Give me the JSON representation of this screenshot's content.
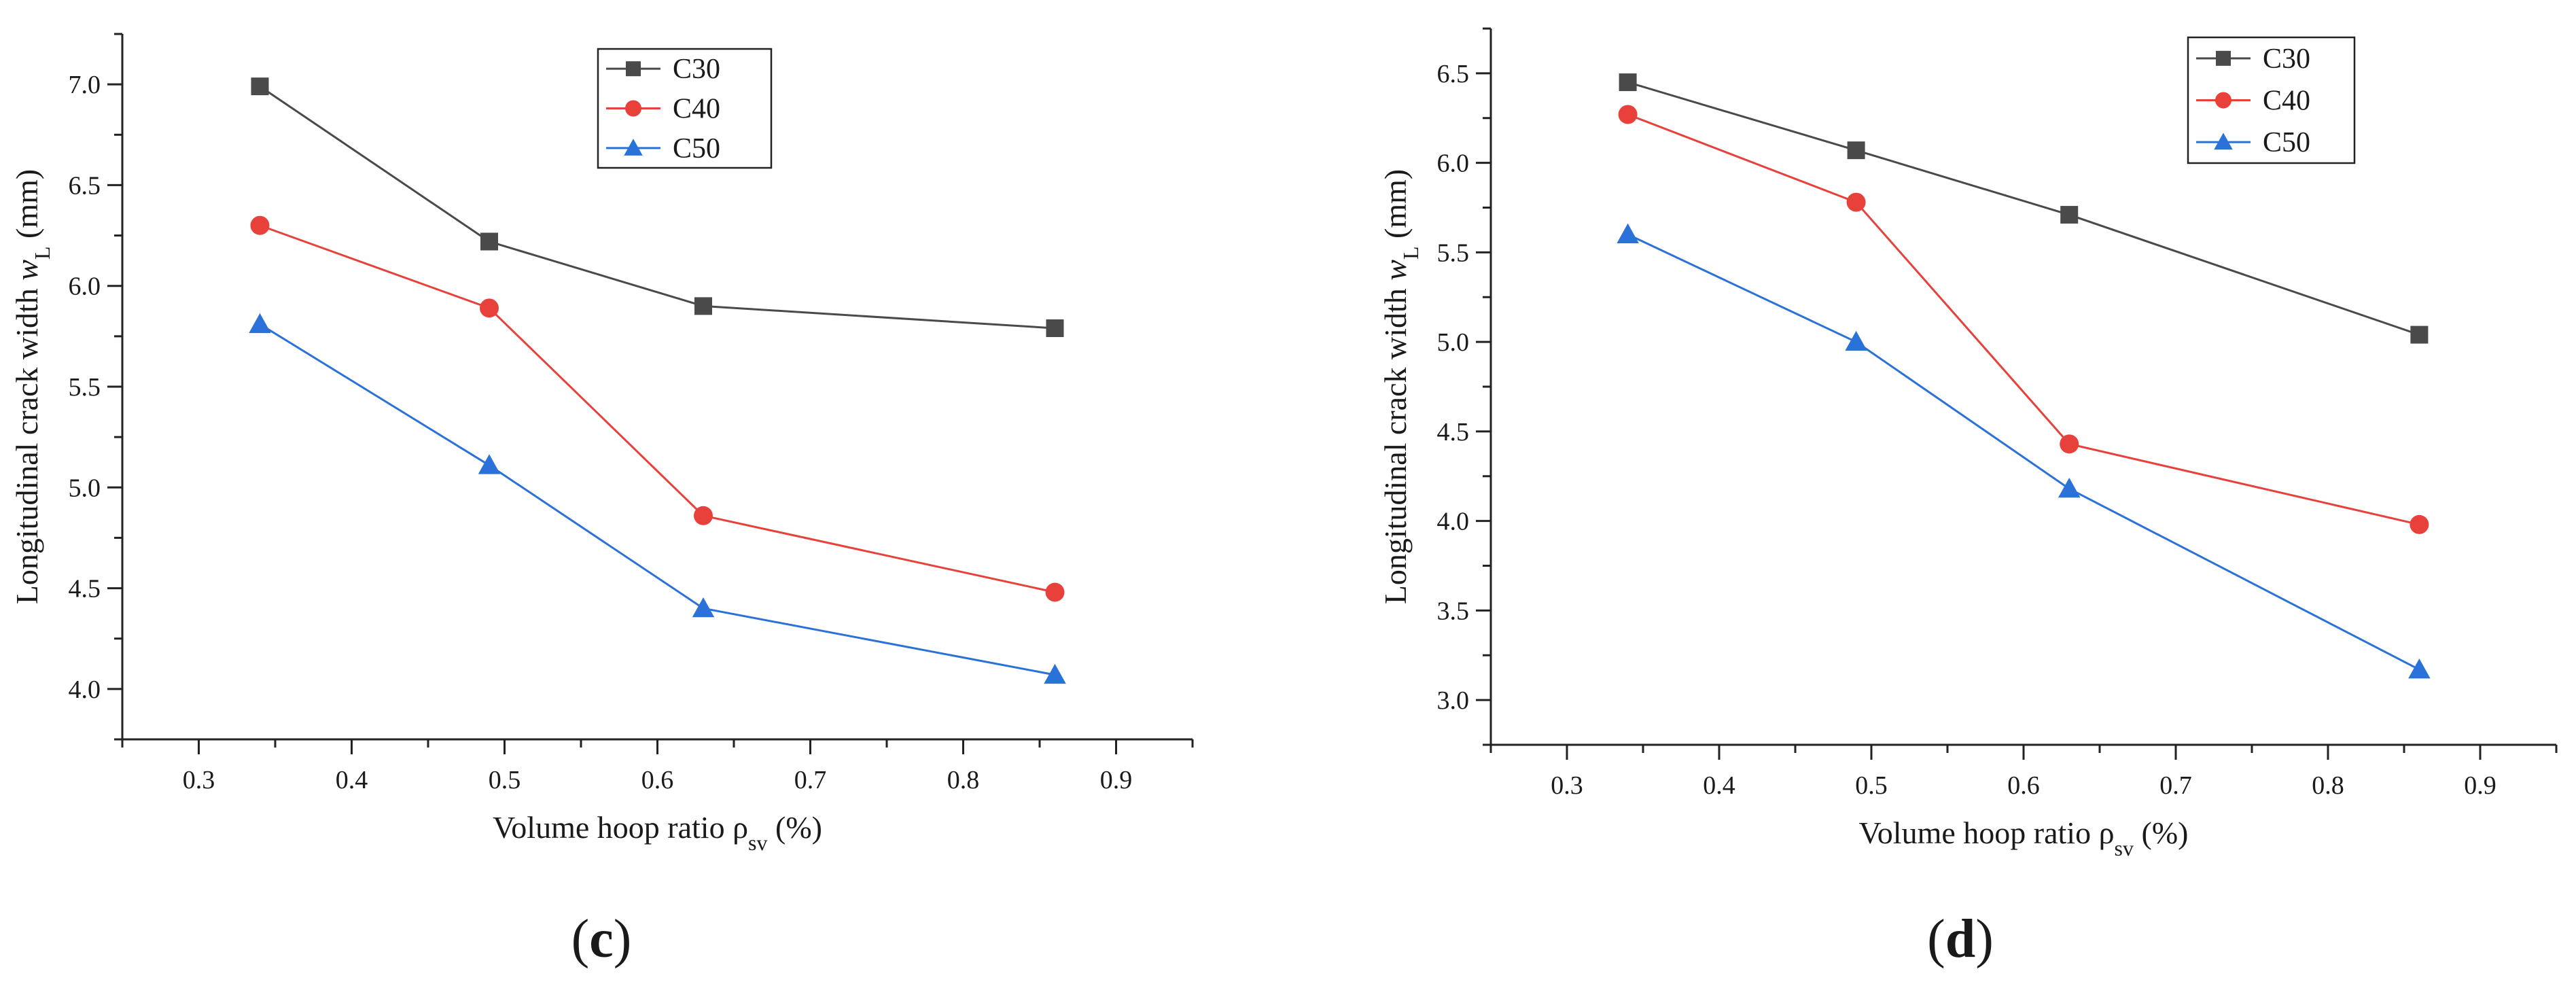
{
  "chart_data": [
    {
      "type": "line",
      "panel_label": {
        "open": "(",
        "letter": "c",
        "close": ")"
      },
      "xlabel": {
        "main": "Volume hoop ratio ρ",
        "sub": "sv",
        "suffix": " (%)"
      },
      "ylabel": {
        "main": "Longitudinal crack width ",
        "italic": "w",
        "sub": "L",
        "suffix": " (mm)"
      },
      "xlim": [
        0.25,
        0.95
      ],
      "ylim": [
        3.75,
        7.25
      ],
      "xticks": [
        0.3,
        0.4,
        0.5,
        0.6,
        0.7,
        0.8,
        0.9
      ],
      "xtick_labels": [
        "0.3",
        "0.4",
        "0.5",
        "0.6",
        "0.7",
        "0.8",
        "0.9"
      ],
      "yticks": [
        4.0,
        4.5,
        5.0,
        5.5,
        6.0,
        6.5,
        7.0
      ],
      "ytick_labels": [
        "4.0",
        "4.5",
        "5.0",
        "5.5",
        "6.0",
        "6.5",
        "7.0"
      ],
      "x": [
        0.34,
        0.49,
        0.63,
        0.86
      ],
      "legend_position": "top-right",
      "series": [
        {
          "name": "C30",
          "color": "#4a4a4a",
          "marker": "square",
          "values": [
            6.99,
            6.22,
            5.9,
            5.79
          ]
        },
        {
          "name": "C40",
          "color": "#e8413c",
          "marker": "circle",
          "values": [
            6.3,
            5.89,
            4.86,
            4.48
          ]
        },
        {
          "name": "C50",
          "color": "#2a72d9",
          "marker": "triangle",
          "values": [
            5.81,
            5.11,
            4.4,
            4.07
          ]
        }
      ]
    },
    {
      "type": "line",
      "panel_label": {
        "open": "(",
        "letter": "d",
        "close": ")"
      },
      "xlabel": {
        "main": "Volume hoop ratio ρ",
        "sub": "sv",
        "suffix": " (%)"
      },
      "ylabel": {
        "main": "Longitudinal crack width ",
        "italic": "w",
        "sub": "L",
        "suffix": " (mm)"
      },
      "xlim": [
        0.25,
        0.95
      ],
      "ylim": [
        2.75,
        6.75
      ],
      "xticks": [
        0.3,
        0.4,
        0.5,
        0.6,
        0.7,
        0.8,
        0.9
      ],
      "xtick_labels": [
        "0.3",
        "0.4",
        "0.5",
        "0.6",
        "0.7",
        "0.8",
        "0.9"
      ],
      "yticks": [
        3.0,
        3.5,
        4.0,
        4.5,
        5.0,
        5.5,
        6.0,
        6.5
      ],
      "ytick_labels": [
        "3.0",
        "3.5",
        "4.0",
        "4.5",
        "5.0",
        "5.5",
        "6.0",
        "6.5"
      ],
      "x": [
        0.34,
        0.49,
        0.63,
        0.86
      ],
      "legend_position": "top-right",
      "series": [
        {
          "name": "C30",
          "color": "#4a4a4a",
          "marker": "square",
          "values": [
            6.45,
            6.07,
            5.71,
            5.04
          ]
        },
        {
          "name": "C40",
          "color": "#e8413c",
          "marker": "circle",
          "values": [
            6.27,
            5.78,
            4.43,
            3.98
          ]
        },
        {
          "name": "C50",
          "color": "#2a72d9",
          "marker": "triangle",
          "values": [
            5.6,
            5.0,
            4.18,
            3.17
          ]
        }
      ]
    }
  ]
}
